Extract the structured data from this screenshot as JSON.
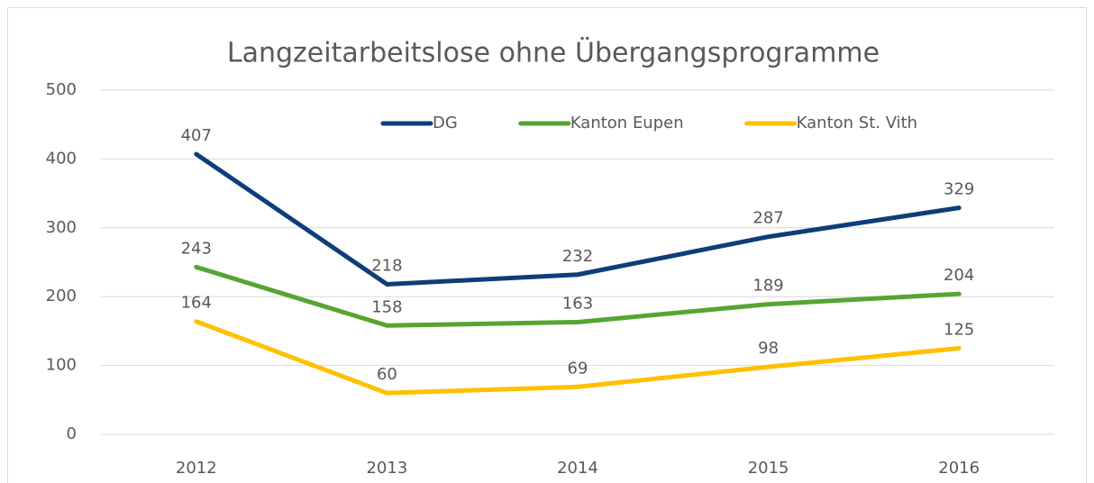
{
  "chart_data": {
    "type": "line",
    "title": "Langzeitarbeitslose ohne Übergangsprogramme",
    "categories": [
      "2012",
      "2013",
      "2014",
      "2015",
      "2016"
    ],
    "series": [
      {
        "name": "DG",
        "color": "#0e3e79",
        "values": [
          407,
          218,
          232,
          287,
          329
        ]
      },
      {
        "name": "Kanton Eupen",
        "color": "#56a532",
        "values": [
          243,
          158,
          163,
          189,
          204
        ]
      },
      {
        "name": "Kanton St. Vith",
        "color": "#ffc000",
        "values": [
          164,
          60,
          69,
          98,
          125
        ]
      }
    ],
    "ylim": [
      0,
      500
    ],
    "yticks": [
      0,
      100,
      200,
      300,
      400,
      500
    ],
    "grid": true,
    "legend": "top",
    "data_labels": true
  }
}
